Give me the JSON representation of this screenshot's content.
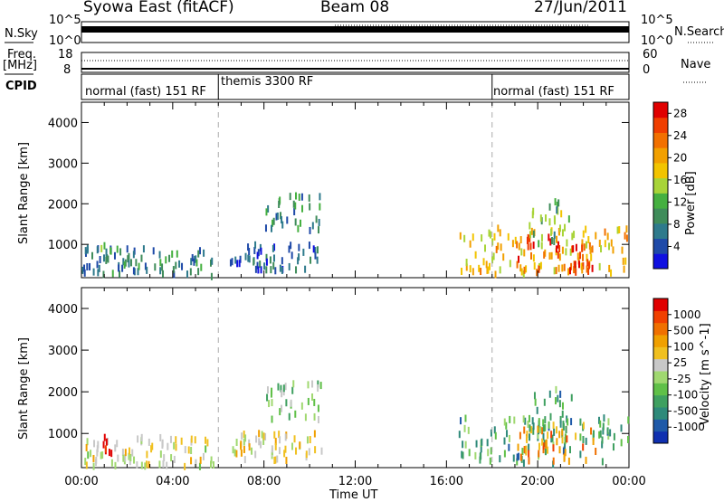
{
  "header": {
    "station": "Syowa East (fitACF)",
    "beam": "Beam 08",
    "date": "27/Jun/2011"
  },
  "top_panels": {
    "nsky_label": "N.Sky",
    "nsky_top": "10^5",
    "nsky_bottom": "10^0",
    "nsearch_label": "N.Search",
    "nsearch_top": "10^5",
    "nsearch_bottom": "10^0",
    "freq_label": "Freq.",
    "freq_unit": "[MHz]",
    "freq_top": "18",
    "freq_bottom": "8",
    "nave_label": "Nave",
    "nave_top": "60",
    "nave_bottom": "0",
    "cpid_label": "CPID"
  },
  "cpid_segments": [
    {
      "label": "normal (fast) 151 RF",
      "start_h": 0,
      "end_h": 6
    },
    {
      "label": "themis 3300 RF",
      "start_h": 6,
      "end_h": 18
    },
    {
      "label": "normal (fast) 151 RF",
      "start_h": 18,
      "end_h": 24
    }
  ],
  "chart_data": [
    {
      "type": "heatmap",
      "panel": "power",
      "xlabel": "Time UT",
      "ylabel": "Slant Range [km]",
      "x_ticks": [
        "00:00",
        "04:00",
        "08:00",
        "12:00",
        "16:00",
        "20:00",
        "00:00"
      ],
      "y_ticks": [
        1000,
        2000,
        3000,
        4000
      ],
      "ylim": [
        180,
        4500
      ],
      "xlim": [
        0,
        24
      ],
      "colorbar_label": "Power [dB]",
      "colorbar_ticks": [
        4,
        8,
        12,
        16,
        20,
        24,
        28
      ],
      "colorbar_range": [
        0,
        30
      ],
      "colorbar_colors": [
        "#1010e0",
        "#1f4aa8",
        "#2e7a8c",
        "#3f8c5a",
        "#45b040",
        "#a8d438",
        "#f2c400",
        "#f2a000",
        "#f27000",
        "#f03e00",
        "#e00000"
      ],
      "echo_regions": [
        {
          "t0": 0.0,
          "t1": 5.8,
          "r0": 200,
          "r1": 900,
          "level": 0.25
        },
        {
          "t0": 0.8,
          "t1": 1.3,
          "r0": 500,
          "r1": 1100,
          "level": 0.35
        },
        {
          "t0": 6.5,
          "t1": 10.5,
          "r0": 350,
          "r1": 1000,
          "level": 0.2
        },
        {
          "t0": 8.0,
          "t1": 10.5,
          "r0": 1300,
          "r1": 2200,
          "level": 0.3
        },
        {
          "t0": 16.5,
          "t1": 24.0,
          "r0": 250,
          "r1": 1400,
          "level": 0.6
        },
        {
          "t0": 19.0,
          "t1": 22.5,
          "r0": 300,
          "r1": 1200,
          "level": 0.85
        },
        {
          "t0": 19.5,
          "t1": 21.5,
          "r0": 1000,
          "r1": 2100,
          "level": 0.4
        }
      ]
    },
    {
      "type": "heatmap",
      "panel": "velocity",
      "xlabel": "Time UT",
      "ylabel": "Slant Range [km]",
      "x_ticks": [
        "00:00",
        "04:00",
        "08:00",
        "12:00",
        "16:00",
        "20:00",
        "00:00"
      ],
      "y_ticks": [
        1000,
        2000,
        3000,
        4000
      ],
      "ylim": [
        180,
        4500
      ],
      "xlim": [
        0,
        24
      ],
      "colorbar_label": "Velocity [m s^-1]",
      "colorbar_ticks": [
        "1000",
        "500",
        "100",
        "25",
        "-25",
        "-100",
        "-500",
        "-1000"
      ],
      "colorbar_colors": [
        "#1030b0",
        "#1f5aa8",
        "#2e8a7a",
        "#3fa060",
        "#60c048",
        "#a0d870",
        "#c8c8c8",
        "#f0c020",
        "#f0a000",
        "#f07000",
        "#f04000",
        "#e00000"
      ],
      "echo_regions": [
        {
          "t0": 0.0,
          "t1": 5.8,
          "r0": 200,
          "r1": 900,
          "level": 0.55
        },
        {
          "t0": 0.8,
          "t1": 1.3,
          "r0": 500,
          "r1": 1100,
          "level": 0.95
        },
        {
          "t0": 6.5,
          "t1": 10.5,
          "r0": 350,
          "r1": 1000,
          "level": 0.6
        },
        {
          "t0": 8.0,
          "t1": 10.5,
          "r0": 1300,
          "r1": 2200,
          "level": 0.4
        },
        {
          "t0": 16.5,
          "t1": 24.0,
          "r0": 250,
          "r1": 1400,
          "level": 0.3
        },
        {
          "t0": 19.0,
          "t1": 22.5,
          "r0": 300,
          "r1": 1200,
          "level": 0.75
        },
        {
          "t0": 19.5,
          "t1": 21.5,
          "r0": 1000,
          "r1": 2100,
          "level": 0.3
        }
      ]
    }
  ]
}
